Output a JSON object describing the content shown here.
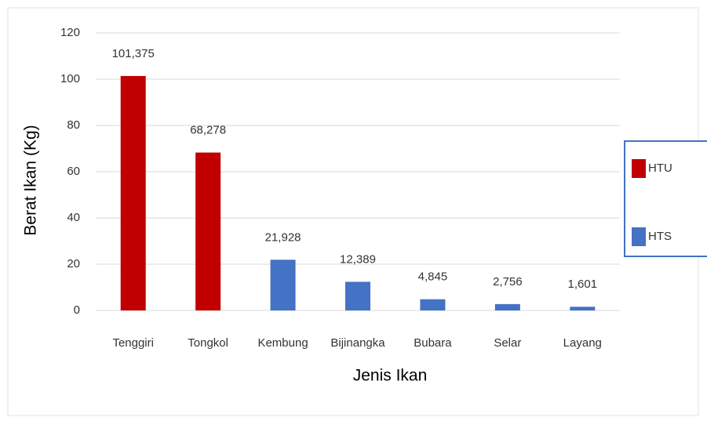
{
  "chart_data": {
    "type": "bar",
    "x_label": "Jenis Ikan",
    "y_label": "Berat Ikan (Kg)",
    "categories": [
      "Tenggiri",
      "Tongkol",
      "Kembung",
      "Bijinangka",
      "Bubara",
      "Selar",
      "Layang"
    ],
    "series": [
      {
        "name": "HTU",
        "color": "#c00000",
        "values": [
          101.375,
          68.278,
          null,
          null,
          null,
          null,
          null
        ],
        "value_labels": [
          "101,375",
          "68,278",
          null,
          null,
          null,
          null,
          null
        ]
      },
      {
        "name": "HTS",
        "color": "#4472c4",
        "values": [
          null,
          null,
          21.928,
          12.389,
          4.845,
          2.756,
          1.601
        ],
        "value_labels": [
          null,
          null,
          "21,928",
          "12,389",
          "4,845",
          "2,756",
          "1,601"
        ]
      }
    ],
    "ylim": [
      0,
      120
    ],
    "yticks": [
      0,
      20,
      40,
      60,
      80,
      100,
      120
    ],
    "grid": true,
    "legend": "right"
  }
}
